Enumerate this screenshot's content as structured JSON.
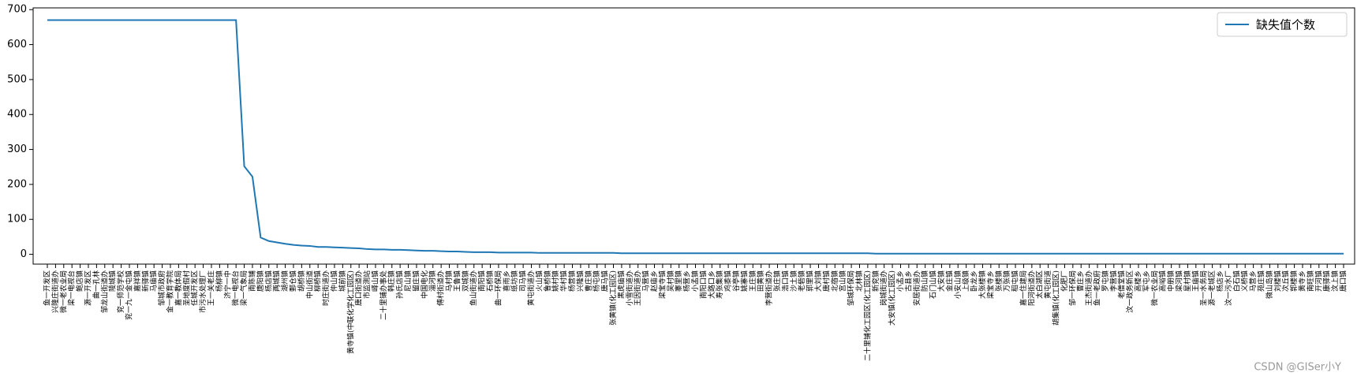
{
  "chart_data": {
    "type": "line",
    "categories": [
      "鱼一开发区",
      "兴隆庄街道办",
      "微一老农业局",
      "梁一电视台",
      "鲍店镇",
      "源一开发区",
      "曲一孔林",
      "邹龙山街道办",
      "陵城镇",
      "兖一师范学校",
      "兖一九一金屯镇",
      "嘉祥镇",
      "新驿镇",
      "马庙镇",
      "邹城市政府",
      "金一教育学院",
      "嘉一教体局",
      "圣地度假村",
      "任城开发区",
      "市污水处理厂",
      "王一关老庄",
      "杨柳镇",
      "济宁一中",
      "微一电视台",
      "梁一气象局",
      "南陈铺",
      "唐阳镇",
      "杨店镇",
      "两城镇",
      "湖州镇",
      "鄄仓镇",
      "胡桥镇",
      "中山街道",
      "柳桥镇",
      "时庄街道办",
      "仲山镇",
      "城前镇",
      "黄寺镇(中联化学化工园区)",
      "唐口街道办",
      "市监测站",
      "峄山镇",
      "二十里铺办事处",
      "韩庄镇",
      "孙氏店镇",
      "尼山镇",
      "留庄镇",
      "中国电化",
      "淄河镇",
      "傅村街道办",
      "马村镇",
      "王鲁镇",
      "双城镇",
      "鱼山街道办",
      "南阳镇",
      "石桥镇",
      "曲一环保局",
      "喜雨乡",
      "纸坊镇",
      "司马镇",
      "黄屯街道办",
      "火山镇",
      "鲁桥镇",
      "姚村镇",
      "华村镇",
      "杨营镇",
      "兴隆镇",
      "曹庄镇",
      "杨屯镇",
      "唐马镇",
      "张黄镇(化工园区)",
      "黑虎庙镇",
      "小雪街道办",
      "王因街道办",
      "马营镇",
      "赵庙乡",
      "梁宝寺镇",
      "吴村镇",
      "寨里镇",
      "杨营乡",
      "小孟镇",
      "南阳口镇",
      "大路口乡",
      "寿张集镇",
      "鸡黍镇",
      "谷亭镇",
      "姚寨镇",
      "王庄镇",
      "田黄镇",
      "李营街道办",
      "张庄镇",
      "浩口镇",
      "沙土镇",
      "老砦镇",
      "郭里镇",
      "大刘镇",
      "唐村镇",
      "北宿镇",
      "宫山镇",
      "邹城环保局",
      "北林镇",
      "二十里铺化工园区(化工园区)",
      "新兖镇",
      "岗城街道办",
      "大安镇(化工园区)",
      "小孟乡",
      "古县乡",
      "安居街道办",
      "防山镇",
      "石门山镇",
      "大安镇",
      "金庄镇",
      "小安山镇",
      "上级镇",
      "卧龙乡",
      "大张楼镇",
      "梁宝寺乡",
      "张楼镇",
      "万张镇",
      "稻屯镇",
      "嘉一住建局",
      "阳河街道办",
      "太白湖区",
      "黄屯街道",
      "胡集镇(化工园区)",
      "化肥厂",
      "邹一环保局",
      "曹庄乡",
      "王杰街道办",
      "鱼一老政府",
      "罗屯镇",
      "李营镇",
      "老僧堂镇",
      "汶一政务新区",
      "高楼乡",
      "军屯乡",
      "微一农业局",
      "高峪镇",
      "中册镇",
      "梁河镇",
      "星村镇",
      "王庙镇",
      "圣一水务局",
      "源一老城区",
      "杨店乡",
      "汶一污水厂",
      "白石镇",
      "义桥镇",
      "马营乡",
      "苑庄镇",
      "微山岛镇",
      "刘楼镇",
      "次丘镇",
      "郭楼镇",
      "黄寺乡",
      "南旺镇",
      "开河镇",
      "康驿镇",
      "汶上镇",
      "唐口镇"
    ],
    "series": [
      {
        "name": "缺失值个数",
        "color": "#1f77b4",
        "values": [
          670,
          670,
          670,
          670,
          670,
          670,
          670,
          670,
          670,
          670,
          670,
          670,
          670,
          670,
          670,
          670,
          670,
          670,
          670,
          670,
          670,
          670,
          670,
          670,
          252,
          222,
          48,
          38,
          34,
          30,
          27,
          25,
          24,
          21,
          21,
          20,
          19,
          18,
          17,
          15,
          14,
          14,
          13,
          13,
          12,
          11,
          10,
          10,
          9,
          8,
          8,
          7,
          6,
          6,
          6,
          5,
          5,
          5,
          5,
          5,
          4,
          4,
          4,
          4,
          4,
          4,
          4,
          4,
          4,
          4,
          3,
          3,
          3,
          3,
          3,
          3,
          3,
          3,
          3,
          3,
          3,
          3,
          3,
          3,
          3,
          3,
          3,
          3,
          3,
          3,
          3,
          3,
          3,
          3,
          3,
          3,
          3,
          3,
          3,
          3,
          3,
          2,
          2,
          2,
          2,
          2,
          2,
          2,
          2,
          2,
          2,
          2,
          2,
          2,
          2,
          2,
          2,
          2,
          2,
          2,
          2,
          2,
          2,
          2,
          2,
          2,
          2,
          2,
          2,
          2,
          2,
          2,
          2,
          2,
          2,
          2,
          2,
          2,
          2,
          2,
          2,
          2,
          2,
          2,
          2,
          2,
          2,
          2,
          2,
          2,
          2,
          2,
          2,
          2,
          2,
          2,
          2,
          2,
          2
        ]
      }
    ],
    "ylim": [
      -28,
      705
    ],
    "yticks": [
      0,
      100,
      200,
      300,
      400,
      500,
      600,
      700
    ],
    "legend": "upper right",
    "watermark": "CSDN @GISer小Y"
  }
}
